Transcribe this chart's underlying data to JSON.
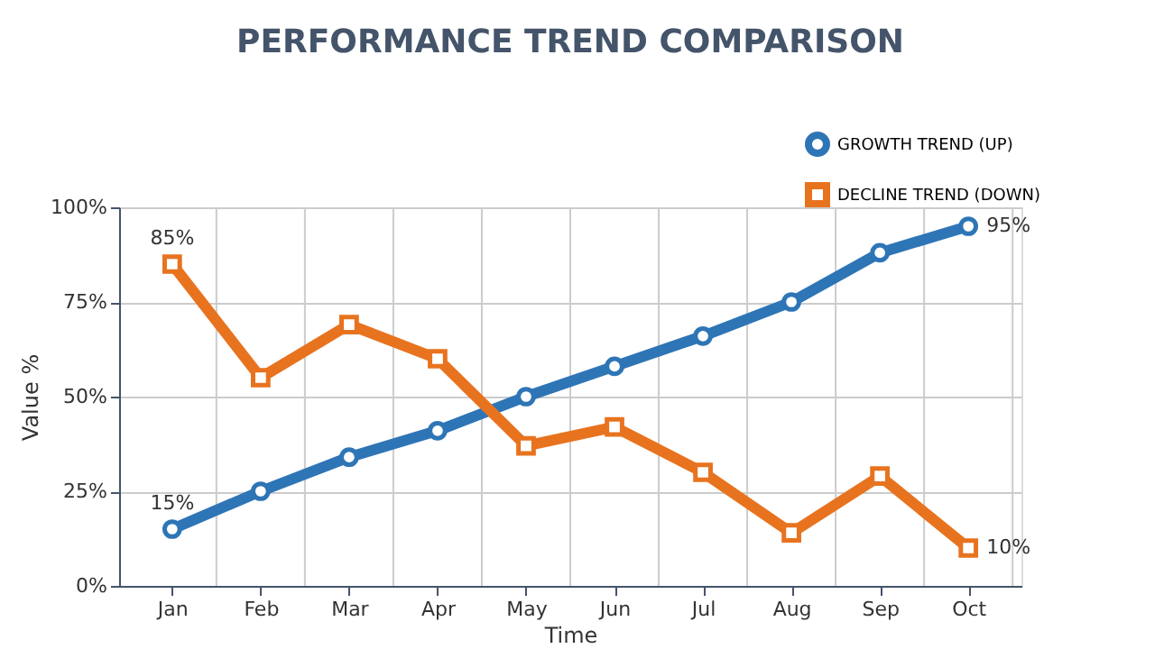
{
  "chart_data": {
    "type": "line",
    "title": "PERFORMANCE TREND COMPARISON",
    "xlabel": "Time",
    "ylabel": "Value %",
    "categories": [
      "Jan",
      "Feb",
      "Mar",
      "Apr",
      "May",
      "Jun",
      "Jul",
      "Aug",
      "Sep",
      "Oct"
    ],
    "series": [
      {
        "name": "GROWTH TREND (UP)",
        "color": "#2e75b6",
        "marker": "circle",
        "values": [
          15,
          25,
          34,
          41,
          50,
          58,
          66,
          75,
          88,
          95
        ],
        "value_labels": [
          "15%",
          null,
          null,
          null,
          null,
          null,
          null,
          null,
          null,
          "95%"
        ]
      },
      {
        "name": "DECLINE TREND (DOWN)",
        "color": "#e8731f",
        "marker": "square",
        "values": [
          85,
          55,
          69,
          60,
          37,
          42,
          30,
          14,
          29,
          10
        ],
        "value_labels": [
          "85%",
          null,
          null,
          null,
          null,
          null,
          null,
          null,
          null,
          "10%"
        ]
      }
    ],
    "ylim": [
      0,
      100
    ],
    "yticks": [
      {
        "value": 0,
        "label": "0%"
      },
      {
        "value": 25,
        "label": "25%"
      },
      {
        "value": 50,
        "label": "50%"
      },
      {
        "value": 75,
        "label": "75%"
      },
      {
        "value": 100,
        "label": "100%"
      }
    ],
    "grid": true,
    "legend": "top right"
  }
}
